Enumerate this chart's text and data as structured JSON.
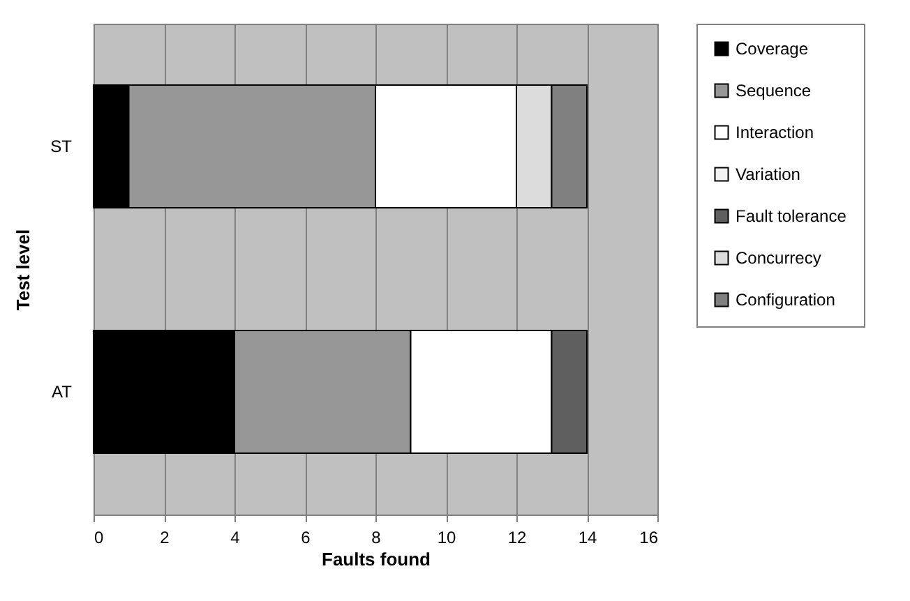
{
  "chart_data": {
    "type": "bar",
    "orientation": "horizontal",
    "stacked": true,
    "xlabel": "Faults found",
    "ylabel": "Test level",
    "categories": [
      "ST",
      "AT"
    ],
    "series": [
      {
        "name": "Coverage",
        "color": "#000000",
        "values": [
          1,
          4
        ]
      },
      {
        "name": "Sequence",
        "color": "#969696",
        "values": [
          7,
          5
        ]
      },
      {
        "name": "Interaction",
        "color": "#ffffff",
        "values": [
          4,
          4
        ]
      },
      {
        "name": "Variation",
        "color": "#f2f2f2",
        "values": [
          0,
          0
        ]
      },
      {
        "name": "Fault tolerance",
        "color": "#5f5f5f",
        "values": [
          0,
          1
        ]
      },
      {
        "name": "Concurrecy",
        "color": "#dcdcdc",
        "values": [
          1,
          0
        ]
      },
      {
        "name": "Configuration",
        "color": "#808080",
        "values": [
          1,
          0
        ]
      }
    ],
    "xlim": [
      0,
      16
    ],
    "xticks": [
      0,
      2,
      4,
      6,
      8,
      10,
      12,
      14,
      16
    ],
    "grid": "x",
    "legend": "right"
  }
}
